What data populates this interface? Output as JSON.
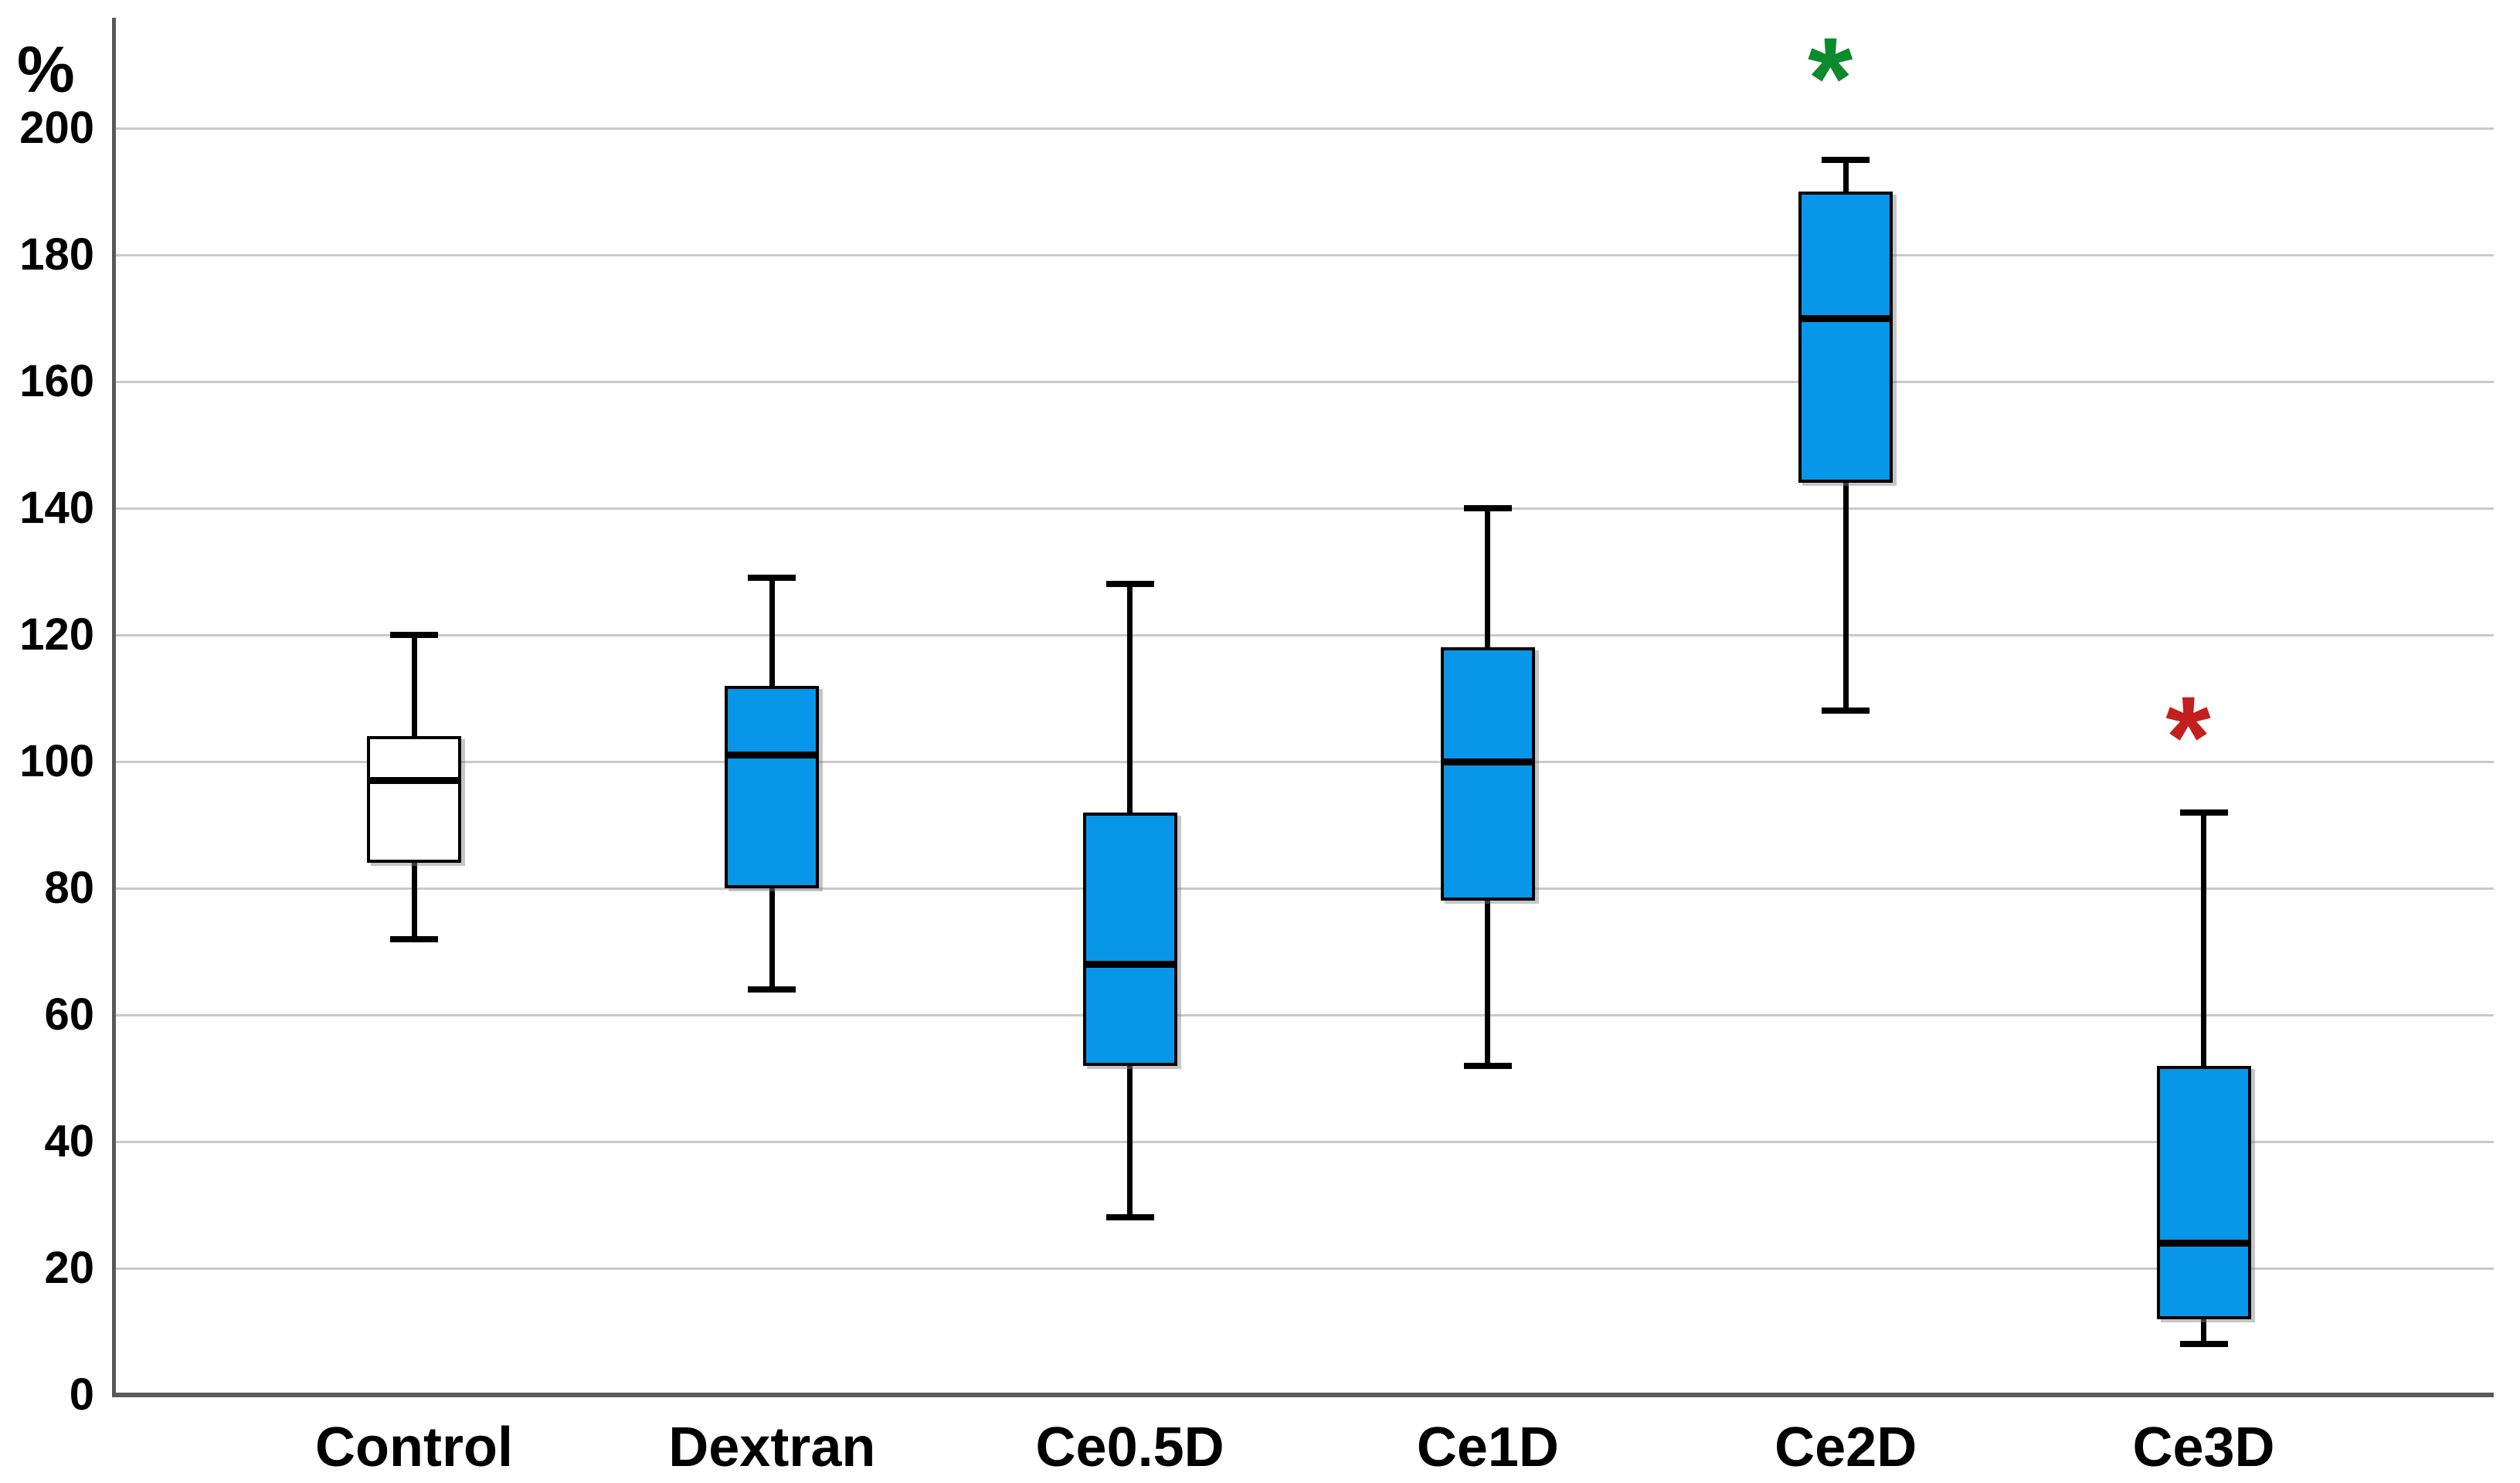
{
  "chart_data": {
    "type": "boxplot",
    "title": "",
    "ylabel": "%",
    "xlabel": "",
    "ylim": [
      0,
      217
    ],
    "y_ticks": [
      0,
      20,
      40,
      60,
      80,
      100,
      120,
      140,
      160,
      180,
      200
    ],
    "grid": true,
    "legend": "none",
    "categories": [
      "Control",
      "Dextran",
      "Ce0.5D",
      "Ce1D",
      "Ce2D",
      "Ce3D"
    ],
    "boxes": [
      {
        "category": "Control",
        "whisker_low": 72,
        "q1": 84,
        "median": 97,
        "q3": 104,
        "whisker_high": 120,
        "fill": "#FFFFFF"
      },
      {
        "category": "Dextran",
        "whisker_low": 64,
        "q1": 80,
        "median": 101,
        "q3": 112,
        "whisker_high": 129,
        "fill": "#0896E8"
      },
      {
        "category": "Ce0.5D",
        "whisker_low": 28,
        "q1": 52,
        "median": 68,
        "q3": 92,
        "whisker_high": 128,
        "fill": "#0896E8"
      },
      {
        "category": "Ce1D",
        "whisker_low": 52,
        "q1": 78,
        "median": 100,
        "q3": 118,
        "whisker_high": 140,
        "fill": "#0896E8"
      },
      {
        "category": "Ce2D",
        "whisker_low": 108,
        "q1": 144,
        "median": 170,
        "q3": 190,
        "whisker_high": 195,
        "fill": "#0896E8"
      },
      {
        "category": "Ce3D",
        "whisker_low": 8,
        "q1": 12,
        "median": 24,
        "q3": 52,
        "whisker_high": 92,
        "fill": "#0896E8"
      }
    ],
    "annotations": [
      {
        "text": "*",
        "category": "Ce2D",
        "y": 210,
        "color": "#0E8A2E"
      },
      {
        "text": "*",
        "category": "Ce3D",
        "y": 106,
        "color": "#C41F1F"
      }
    ],
    "colors": {
      "box_fill_blue": "#0896E8",
      "box_fill_control": "#FFFFFF",
      "box_border": "#000000",
      "median_line": "#000000",
      "whisker": "#000000",
      "gridline": "#C9C9C9",
      "axis_line": "#59595B",
      "asterisk_green": "#0E8A2E",
      "asterisk_red": "#C41F1F",
      "background": "#FFFFFF"
    }
  }
}
